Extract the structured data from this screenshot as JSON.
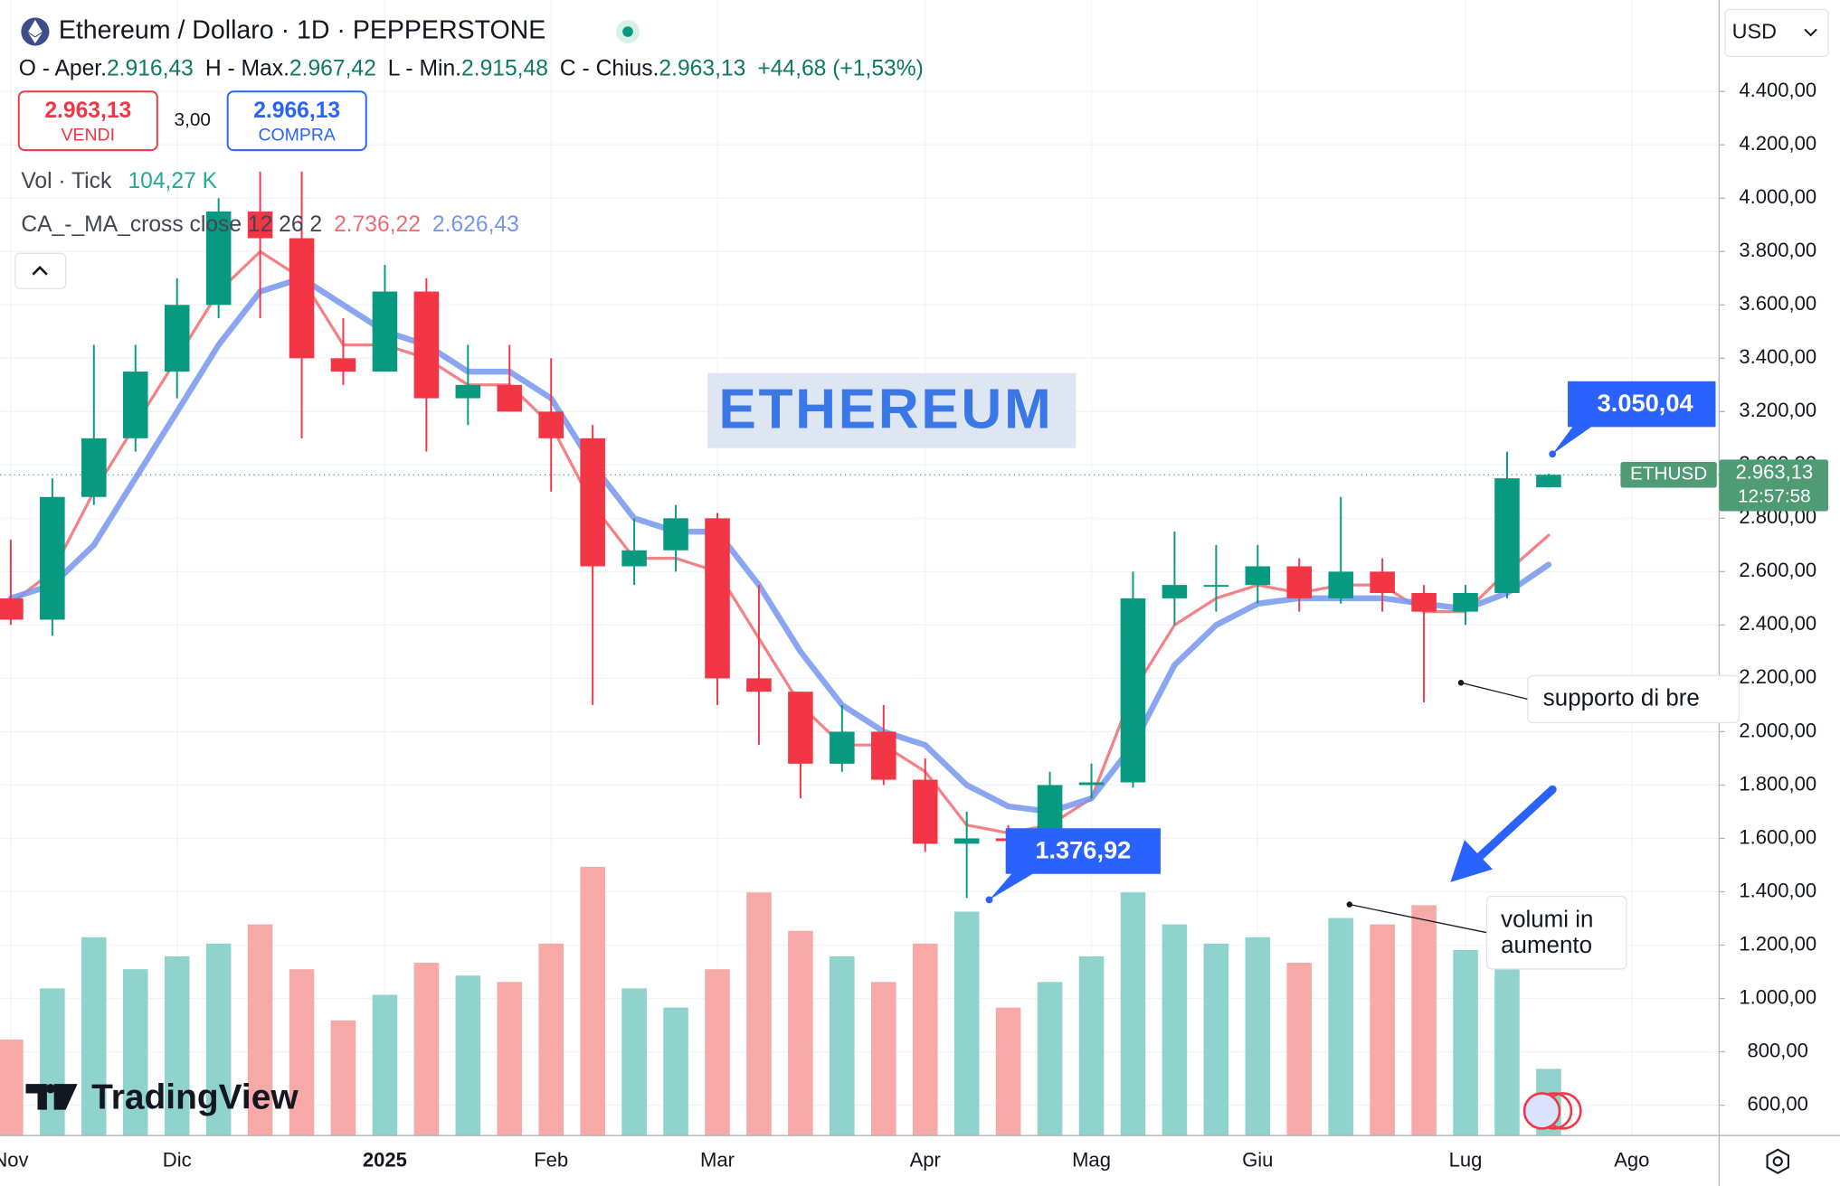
{
  "chart_data": {
    "type": "candlestick",
    "title": "Ethereum / Dollaro · 1D · PEPPERSTONE",
    "ohlc_legend": [
      {
        "label": "O - Aper.",
        "value": "2.916,43"
      },
      {
        "label": "H - Max.",
        "value": "2.967,42"
      },
      {
        "label": "L - Min.",
        "value": "2.915,48"
      },
      {
        "label": "C - Chius.",
        "value": "2.963,13"
      }
    ],
    "change": "+44,68 (+1,53%)",
    "categories": [
      "Nov",
      null,
      null,
      null,
      "Dic",
      null,
      null,
      null,
      null,
      "2025",
      null,
      null,
      null,
      "Feb",
      null,
      null,
      null,
      "Mar",
      null,
      null,
      null,
      null,
      "Apr",
      null,
      null,
      null,
      "Mag",
      null,
      null,
      null,
      "Giu",
      null,
      null,
      null,
      null,
      "Lug",
      null,
      null,
      null,
      "Ago",
      null
    ],
    "open": [
      2500,
      2420,
      2880,
      3100,
      3350,
      3600,
      3950,
      3850,
      3400,
      3350,
      3650,
      3250,
      3300,
      3200,
      3100,
      2620,
      2680,
      2800,
      2200,
      2150,
      1880,
      2000,
      1820,
      1580,
      1600,
      1590,
      1800,
      1810,
      2500,
      2550,
      2550,
      2620,
      2500,
      2600,
      2520,
      2450,
      2520,
      2916.43,
      null,
      null,
      null
    ],
    "high": [
      2720,
      2950,
      3450,
      3450,
      3700,
      4000,
      4100,
      4100,
      3550,
      3750,
      3700,
      3450,
      3450,
      3400,
      3150,
      2800,
      2850,
      2820,
      2550,
      2150,
      2100,
      2100,
      1900,
      1700,
      1650,
      1850,
      1880,
      2600,
      2750,
      2700,
      2700,
      2650,
      2880,
      2650,
      2550,
      2550,
      3050.04,
      2967.42,
      null,
      null,
      null
    ],
    "low": [
      2400,
      2360,
      2850,
      3050,
      3250,
      3550,
      3550,
      3100,
      3300,
      3350,
      3050,
      3150,
      3200,
      2900,
      2100,
      2550,
      2600,
      2100,
      1950,
      1750,
      1850,
      1800,
      1550,
      1376.92,
      1560,
      1580,
      1750,
      1790,
      2400,
      2450,
      2480,
      2450,
      2480,
      2450,
      2110,
      2400,
      2500,
      2915.48,
      null,
      null,
      null
    ],
    "close": [
      2420,
      2880,
      3100,
      3350,
      3600,
      3950,
      3850,
      3400,
      3350,
      3650,
      3250,
      3300,
      3200,
      3100,
      2620,
      2680,
      2800,
      2200,
      2150,
      1880,
      2000,
      1820,
      1580,
      1600,
      1590,
      1800,
      1810,
      2500,
      2550,
      2550,
      2620,
      2500,
      2600,
      2520,
      2450,
      2520,
      2950,
      2963.13,
      null,
      null,
      null
    ],
    "up_color": "#089981",
    "down_color": "#f23645",
    "volume": {
      "label": "Vol · Tick",
      "value_label": "104,27 K",
      "label_color": "#22ab94",
      "up_color": "#8fd3cc",
      "down_color": "#f7a9a7",
      "values": [
        150,
        230,
        310,
        260,
        280,
        300,
        330,
        260,
        180,
        220,
        270,
        250,
        240,
        300,
        420,
        230,
        200,
        260,
        380,
        320,
        280,
        240,
        300,
        350,
        200,
        240,
        280,
        380,
        330,
        300,
        310,
        270,
        340,
        330,
        360,
        290,
        330,
        104.27,
        null,
        null,
        null
      ],
      "vlim": [
        0,
        550
      ]
    },
    "moving_averages": {
      "label": "CA_-_MA_cross close 12 26 2",
      "series": [
        {
          "value_label": "2.736,22",
          "color": "#f26b70",
          "values": [
            2480,
            2600,
            2900,
            3150,
            3400,
            3650,
            3800,
            3700,
            3450,
            3450,
            3400,
            3300,
            3300,
            3150,
            2850,
            2650,
            2650,
            2600,
            2350,
            2100,
            1950,
            1950,
            1850,
            1650,
            1620,
            1650,
            1750,
            2150,
            2400,
            2500,
            2550,
            2520,
            2550,
            2550,
            2450,
            2450,
            2600,
            2736.22,
            null,
            null,
            null
          ]
        },
        {
          "value_label": "2.626,43",
          "color": "#7596ee",
          "values": [
            2500,
            2550,
            2700,
            2950,
            3200,
            3450,
            3650,
            3700,
            3600,
            3500,
            3450,
            3350,
            3350,
            3250,
            3000,
            2800,
            2750,
            2750,
            2550,
            2300,
            2100,
            2000,
            1950,
            1800,
            1720,
            1700,
            1750,
            1950,
            2250,
            2400,
            2480,
            2500,
            2500,
            2500,
            2480,
            2460,
            2520,
            2626.43,
            null,
            null,
            null
          ]
        }
      ]
    },
    "ylim": [
      486,
      4743
    ],
    "yticks": [
      {
        "value": 600,
        "label": "600,00"
      },
      {
        "value": 800,
        "label": "800,00"
      },
      {
        "value": 1000,
        "label": "1.000,00"
      },
      {
        "value": 1200,
        "label": "1.200,00"
      },
      {
        "value": 1400,
        "label": "1.400,00"
      },
      {
        "value": 1600,
        "label": "1.600,00"
      },
      {
        "value": 1800,
        "label": "1.800,00"
      },
      {
        "value": 2000,
        "label": "2.000,00"
      },
      {
        "value": 2200,
        "label": "2.200,00"
      },
      {
        "value": 2400,
        "label": "2.400,00"
      },
      {
        "value": 2600,
        "label": "2.600,00"
      },
      {
        "value": 2800,
        "label": "2.800,00"
      },
      {
        "value": 3000,
        "label": "3.000,00"
      },
      {
        "value": 3200,
        "label": "3.200,00"
      },
      {
        "value": 3400,
        "label": "3.400,00"
      },
      {
        "value": 3600,
        "label": "3.600,00"
      },
      {
        "value": 3800,
        "label": "3.800,00"
      },
      {
        "value": 4000,
        "label": "4.000,00"
      },
      {
        "value": 4200,
        "label": "4.200,00"
      },
      {
        "value": 4400,
        "label": "4.400,00"
      }
    ],
    "grid": true,
    "last_price": {
      "value": 2963.13,
      "label": "2.963,13",
      "symbol": "ETHUSD",
      "countdown": "12:57:58",
      "color": "#4f9b76"
    },
    "watermark": "ETHEREUM",
    "annotations": [
      {
        "text": "3.050,04"
      },
      {
        "text": "1.376,92"
      },
      {
        "text": "supporto di bre"
      },
      {
        "lines": [
          "volumi in",
          "aumento"
        ]
      }
    ]
  },
  "ui": {
    "sell": {
      "price": "2.963,13",
      "label": "VENDI"
    },
    "spread": "3,00",
    "buy": {
      "price": "2.966,13",
      "label": "COMPRA"
    },
    "currency": "USD",
    "logo": "TradingView"
  }
}
